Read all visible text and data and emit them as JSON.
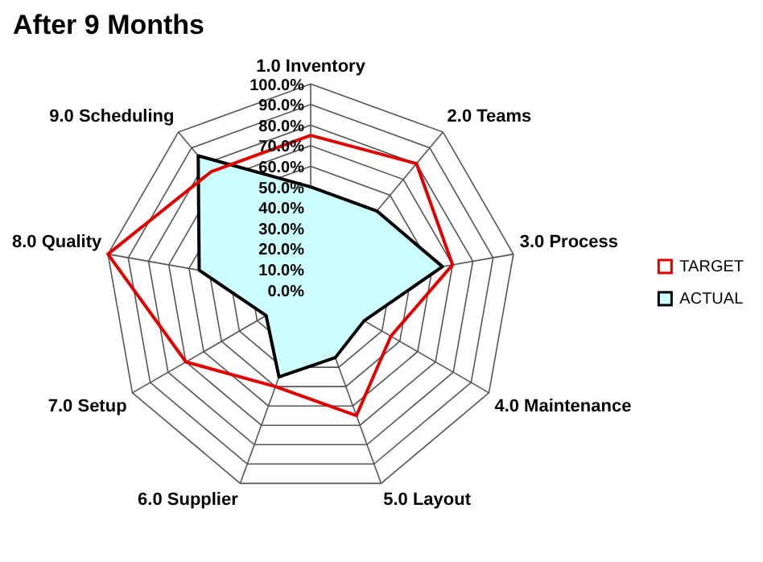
{
  "chart_data": {
    "type": "radar",
    "title": "After 9 Months",
    "categories": [
      "1.0 Inventory",
      "2.0 Teams",
      "3.0 Process",
      "4.0 Maintenance",
      "5.0 Layout",
      "6.0 Supplier",
      "7.0 Setup",
      "8.0 Quality",
      "9.0 Scheduling"
    ],
    "series": [
      {
        "name": "TARGET",
        "color": "#e00000",
        "values": [
          75,
          80,
          70,
          45,
          65,
          50,
          70,
          100,
          75
        ]
      },
      {
        "name": "ACTUAL",
        "color": "#000000",
        "values": [
          50,
          50,
          65,
          30,
          35,
          45,
          25,
          55,
          85
        ]
      }
    ],
    "ylim": [
      0,
      100
    ],
    "yticks": [
      {
        "value": 0,
        "label": "0.0%"
      },
      {
        "value": 10,
        "label": "10.0%"
      },
      {
        "value": 20,
        "label": "20.0%"
      },
      {
        "value": 30,
        "label": "30.0%"
      },
      {
        "value": 40,
        "label": "40.0%"
      },
      {
        "value": 50,
        "label": "50.0%"
      },
      {
        "value": 60,
        "label": "60.0%"
      },
      {
        "value": 70,
        "label": "70.0%"
      },
      {
        "value": 80,
        "label": "80.0%"
      },
      {
        "value": 90,
        "label": "90.0%"
      },
      {
        "value": 100,
        "label": "100.0%"
      }
    ],
    "grid": true,
    "legend": "right",
    "marker": "none"
  }
}
